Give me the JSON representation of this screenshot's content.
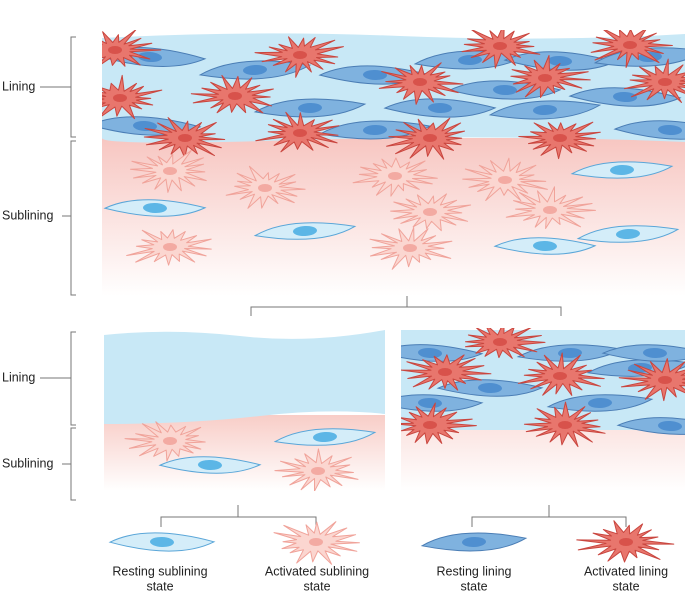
{
  "top_panel": {
    "lining_label": "Lining",
    "sublining_label": "Sublining"
  },
  "bottom_panel": {
    "lining_label": "Lining",
    "sublining_label": "Sublining"
  },
  "legend": [
    {
      "lines": [
        "Resting sublining",
        "state"
      ]
    },
    {
      "lines": [
        "Activated sublining",
        "state"
      ]
    },
    {
      "lines": [
        "Resting lining",
        "state"
      ]
    },
    {
      "lines": [
        "Activated lining",
        "state"
      ]
    }
  ]
}
